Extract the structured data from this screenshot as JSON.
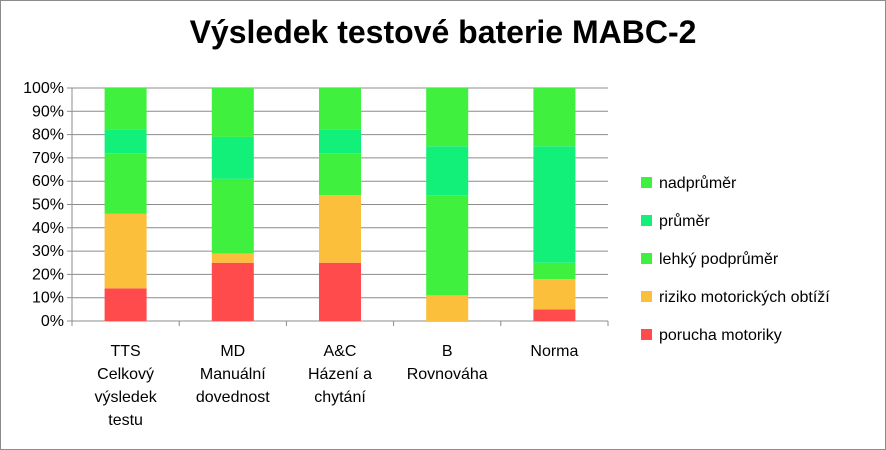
{
  "chart_data": {
    "type": "bar",
    "stacked": true,
    "percent": true,
    "title": "Výsledek testové baterie MABC-2",
    "categories": [
      [
        "TTS",
        "Celkový",
        "výsledek",
        "testu"
      ],
      [
        "MD",
        "Manuální",
        "dovednost"
      ],
      [
        "A&C",
        "Házení a",
        "chytání"
      ],
      [
        "B",
        "Rovnováha"
      ],
      [
        "Norma"
      ]
    ],
    "yticks": [
      "0%",
      "10%",
      "20%",
      "30%",
      "40%",
      "50%",
      "60%",
      "70%",
      "80%",
      "90%",
      "100%"
    ],
    "ylim": [
      0,
      100
    ],
    "grid": true,
    "legend_position": "right",
    "series": [
      {
        "name": "porucha motoriky",
        "color": "#ff4b4b",
        "values": [
          14,
          25,
          25,
          0,
          5
        ]
      },
      {
        "name": "riziko motorických obtíží",
        "color": "#fbbf3c",
        "values": [
          32,
          4,
          29,
          11,
          13
        ]
      },
      {
        "name": "lehký podprůměr",
        "color": "#3ff03f",
        "values": [
          26,
          32,
          18,
          43,
          7
        ]
      },
      {
        "name": "průměr",
        "color": "#13f07a",
        "values": [
          10,
          18,
          10,
          21,
          50
        ]
      },
      {
        "name": "nadprůměr",
        "color": "#3ff03f",
        "values": [
          18,
          21,
          18,
          25,
          25
        ]
      }
    ]
  }
}
